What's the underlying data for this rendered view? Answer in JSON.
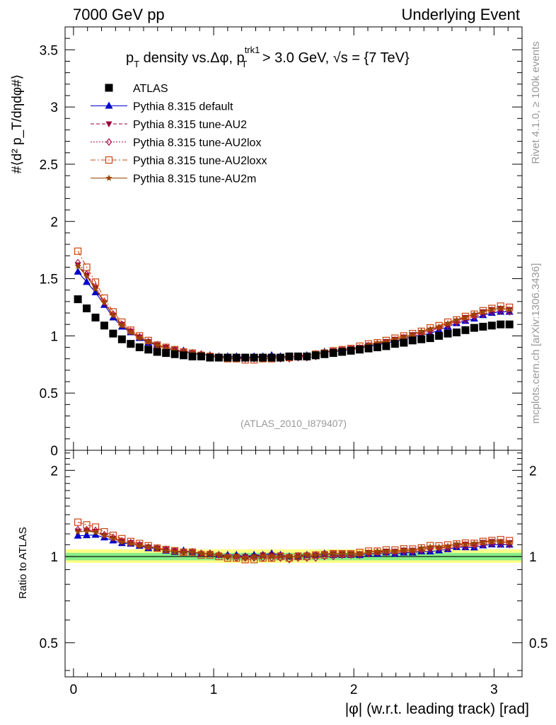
{
  "header": {
    "left": "7000 GeV pp",
    "right": "Underlying Event"
  },
  "title_parts": {
    "p": "p",
    "t_sub": "T",
    "mid": " density vs.Δφ, p",
    "trk_sup": "trk1",
    "t_sub2": "T",
    "thresh": " > 3.0 GeV, ",
    "sqrt": "√s",
    "energy": " = {7 TeV}"
  },
  "side_labels": {
    "rivet": "Rivet 4.1.0, ≥ 100k events",
    "mcplots": "mcplots.cern.ch [arXiv:1306.3436]"
  },
  "analysis_id": "(ATLAS_2010_I879407)",
  "axes": {
    "ylabel_main": "#⟨d² p_T/dηdφ#⟩",
    "ylabel_ratio": "Ratio to ATLAS",
    "xlabel": "|φ| (w.r.t. leading track) [rad]"
  },
  "colors": {
    "atlas": "#000000",
    "default": "#0000cc",
    "au2": "#990033",
    "au2lox": "#aa1144",
    "au2loxx": "#cc4411",
    "au2m": "#994400",
    "band_yellow": "#ffff88",
    "band_green": "#88ee88"
  },
  "chart_data": {
    "type": "scatter",
    "x": [
      0.0314,
      0.0942,
      0.1571,
      0.2199,
      0.2827,
      0.3456,
      0.4084,
      0.4712,
      0.5341,
      0.5969,
      0.6597,
      0.7226,
      0.7854,
      0.8482,
      0.9111,
      0.9739,
      1.0367,
      1.0996,
      1.1624,
      1.2252,
      1.2881,
      1.3509,
      1.4137,
      1.4765,
      1.5394,
      1.6022,
      1.665,
      1.7279,
      1.7907,
      1.8535,
      1.9164,
      1.9792,
      2.042,
      2.1049,
      2.1677,
      2.2305,
      2.2934,
      2.3562,
      2.419,
      2.4819,
      2.5447,
      2.6075,
      2.6704,
      2.7332,
      2.796,
      2.8588,
      2.9217,
      2.9845,
      3.0473,
      3.1102
    ],
    "series": [
      {
        "name": "ATLAS",
        "values": [
          1.32,
          1.24,
          1.16,
          1.09,
          1.02,
          0.97,
          0.93,
          0.9,
          0.88,
          0.86,
          0.85,
          0.84,
          0.83,
          0.82,
          0.82,
          0.81,
          0.81,
          0.81,
          0.81,
          0.81,
          0.81,
          0.81,
          0.81,
          0.81,
          0.82,
          0.82,
          0.82,
          0.83,
          0.84,
          0.85,
          0.86,
          0.87,
          0.88,
          0.89,
          0.9,
          0.91,
          0.93,
          0.94,
          0.96,
          0.97,
          0.98,
          1.0,
          1.02,
          1.03,
          1.05,
          1.07,
          1.08,
          1.09,
          1.1,
          1.1
        ]
      },
      {
        "name": "Pythia 8.315 default",
        "values": [
          1.56,
          1.47,
          1.38,
          1.27,
          1.16,
          1.08,
          1.03,
          0.98,
          0.94,
          0.92,
          0.89,
          0.87,
          0.87,
          0.85,
          0.84,
          0.83,
          0.82,
          0.82,
          0.82,
          0.81,
          0.82,
          0.82,
          0.83,
          0.82,
          0.82,
          0.82,
          0.83,
          0.84,
          0.86,
          0.86,
          0.87,
          0.88,
          0.89,
          0.91,
          0.92,
          0.94,
          0.95,
          0.97,
          0.99,
          1.01,
          1.02,
          1.05,
          1.08,
          1.11,
          1.13,
          1.15,
          1.18,
          1.2,
          1.21,
          1.21
        ]
      },
      {
        "name": "Pythia 8.315 tune-AU2",
        "values": [
          1.62,
          1.53,
          1.42,
          1.29,
          1.18,
          1.1,
          1.04,
          0.99,
          0.95,
          0.92,
          0.9,
          0.88,
          0.86,
          0.85,
          0.84,
          0.83,
          0.82,
          0.81,
          0.81,
          0.81,
          0.81,
          0.82,
          0.82,
          0.82,
          0.82,
          0.83,
          0.83,
          0.84,
          0.86,
          0.87,
          0.88,
          0.89,
          0.9,
          0.92,
          0.93,
          0.95,
          0.97,
          0.99,
          1.01,
          1.03,
          1.05,
          1.07,
          1.1,
          1.13,
          1.16,
          1.18,
          1.21,
          1.23,
          1.24,
          1.23
        ]
      },
      {
        "name": "Pythia 8.315 tune-AU2lox",
        "values": [
          1.64,
          1.54,
          1.43,
          1.3,
          1.19,
          1.1,
          1.04,
          0.99,
          0.95,
          0.92,
          0.9,
          0.88,
          0.86,
          0.85,
          0.84,
          0.83,
          0.82,
          0.81,
          0.8,
          0.8,
          0.8,
          0.8,
          0.8,
          0.8,
          0.8,
          0.81,
          0.81,
          0.82,
          0.84,
          0.85,
          0.87,
          0.88,
          0.89,
          0.91,
          0.93,
          0.94,
          0.96,
          0.98,
          1.0,
          1.02,
          1.04,
          1.07,
          1.09,
          1.12,
          1.14,
          1.17,
          1.19,
          1.21,
          1.22,
          1.21
        ]
      },
      {
        "name": "Pythia 8.315 tune-AU2loxx",
        "values": [
          1.74,
          1.6,
          1.47,
          1.33,
          1.21,
          1.12,
          1.05,
          1.0,
          0.96,
          0.92,
          0.9,
          0.88,
          0.86,
          0.85,
          0.83,
          0.82,
          0.81,
          0.8,
          0.8,
          0.79,
          0.79,
          0.8,
          0.8,
          0.81,
          0.81,
          0.82,
          0.82,
          0.84,
          0.85,
          0.87,
          0.88,
          0.89,
          0.91,
          0.93,
          0.94,
          0.96,
          0.98,
          1.0,
          1.02,
          1.04,
          1.07,
          1.09,
          1.12,
          1.14,
          1.17,
          1.19,
          1.22,
          1.24,
          1.26,
          1.25
        ]
      },
      {
        "name": "Pythia 8.315 tune-AU2m",
        "values": [
          1.61,
          1.52,
          1.41,
          1.29,
          1.18,
          1.09,
          1.03,
          0.98,
          0.95,
          0.92,
          0.89,
          0.87,
          0.86,
          0.85,
          0.84,
          0.83,
          0.82,
          0.81,
          0.81,
          0.8,
          0.81,
          0.81,
          0.81,
          0.81,
          0.82,
          0.82,
          0.83,
          0.84,
          0.86,
          0.87,
          0.88,
          0.89,
          0.9,
          0.92,
          0.94,
          0.95,
          0.97,
          0.99,
          1.01,
          1.04,
          1.06,
          1.08,
          1.11,
          1.14,
          1.16,
          1.19,
          1.21,
          1.23,
          1.24,
          1.23
        ]
      }
    ],
    "xlim": [
      -0.06,
      3.2
    ],
    "ylim": [
      0,
      3.7
    ],
    "ratio_ylim": [
      0.38,
      2.35
    ],
    "xticks": [
      0,
      1,
      2,
      3
    ],
    "xticklabels": [
      "0",
      "1",
      "2",
      "3"
    ],
    "yticks": [
      0,
      0.5,
      1,
      1.5,
      2,
      2.5,
      3,
      3.5
    ],
    "yticklabels": [
      "0",
      "0.5",
      "1",
      "1.5",
      "2",
      "2.5",
      "3",
      "3.5"
    ],
    "ratio_yticks": [
      0.5,
      1,
      2
    ],
    "ratio_yticklabels": [
      "0.5",
      "1",
      "2"
    ],
    "ratio_band": {
      "yellow": [
        0.95,
        1.06
      ],
      "green": [
        0.97,
        1.03
      ]
    },
    "legend": [
      {
        "label": "ATLAS",
        "series": 0,
        "marker": "square",
        "line": "none"
      },
      {
        "label": "Pythia 8.315 default",
        "series": 1,
        "marker": "triangle",
        "line": "solid"
      },
      {
        "label": "Pythia 8.315 tune-AU2",
        "series": 2,
        "marker": "invtriangle",
        "line": "dashed"
      },
      {
        "label": "Pythia 8.315 tune-AU2lox",
        "series": 3,
        "marker": "diamond",
        "line": "dotted"
      },
      {
        "label": "Pythia 8.315 tune-AU2loxx",
        "series": 4,
        "marker": "opensquare",
        "line": "dashdot"
      },
      {
        "label": "Pythia 8.315 tune-AU2m",
        "series": 5,
        "marker": "star",
        "line": "solid"
      }
    ],
    "legend_placement": "top-left"
  }
}
